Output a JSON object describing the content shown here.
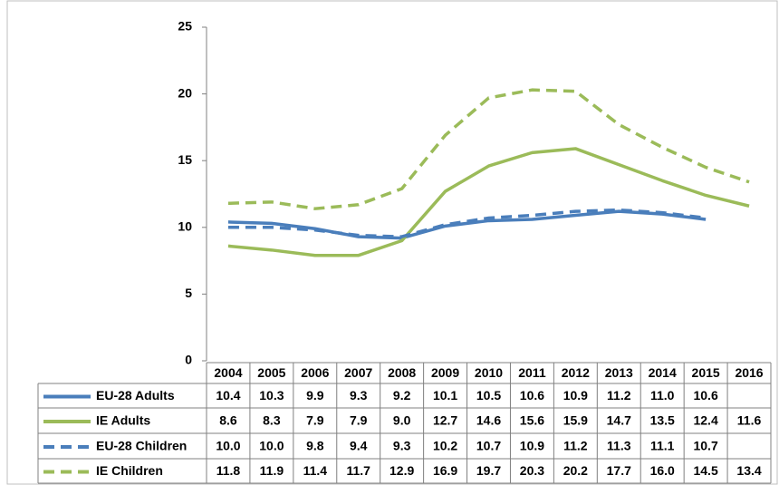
{
  "chart_data": {
    "type": "line",
    "categories": [
      "2004",
      "2005",
      "2006",
      "2007",
      "2008",
      "2009",
      "2010",
      "2011",
      "2012",
      "2013",
      "2014",
      "2015",
      "2016"
    ],
    "series": [
      {
        "name": "EU-28 Adults",
        "color": "#4a7ebb",
        "style": "solid",
        "values": [
          10.4,
          10.3,
          9.9,
          9.3,
          9.2,
          10.1,
          10.5,
          10.6,
          10.9,
          11.2,
          11.0,
          10.6,
          null
        ],
        "value_labels": [
          "10.4",
          "10.3",
          "9.9",
          "9.3",
          "9.2",
          "10.1",
          "10.5",
          "10.6",
          "10.9",
          "11.2",
          "11.0",
          "10.6",
          null
        ]
      },
      {
        "name": "IE Adults",
        "color": "#9bbb59",
        "style": "solid",
        "values": [
          8.6,
          8.3,
          7.9,
          7.9,
          9.0,
          12.7,
          14.6,
          15.6,
          15.9,
          14.7,
          13.5,
          12.4,
          11.6
        ],
        "value_labels": [
          "8.6",
          "8.3",
          "7.9",
          "7.9",
          "9.0",
          "12.7",
          "14.6",
          "15.6",
          "15.9",
          "14.7",
          "13.5",
          "12.4",
          "11.6"
        ]
      },
      {
        "name": "EU-28 Children",
        "color": "#4a7ebb",
        "style": "dashed",
        "values": [
          10.0,
          10.0,
          9.8,
          9.4,
          9.3,
          10.2,
          10.7,
          10.9,
          11.2,
          11.3,
          11.1,
          10.7,
          null
        ],
        "value_labels": [
          "10.0",
          "10.0",
          "9.8",
          "9.4",
          "9.3",
          "10.2",
          "10.7",
          "10.9",
          "11.2",
          "11.3",
          "11.1",
          "10.7",
          null
        ]
      },
      {
        "name": "IE Children",
        "color": "#9bbb59",
        "style": "dashed",
        "values": [
          11.8,
          11.9,
          11.4,
          11.7,
          12.9,
          16.9,
          19.7,
          20.3,
          20.2,
          17.7,
          16.0,
          14.5,
          13.4
        ],
        "value_labels": [
          "11.8",
          "11.9",
          "11.4",
          "11.7",
          "12.9",
          "16.9",
          "19.7",
          "20.3",
          "20.2",
          "17.7",
          "16.0",
          "14.5",
          "13.4"
        ]
      }
    ],
    "ylim": [
      0,
      25
    ],
    "yticks": [
      0,
      5,
      10,
      15,
      20,
      25
    ],
    "grid": false
  }
}
